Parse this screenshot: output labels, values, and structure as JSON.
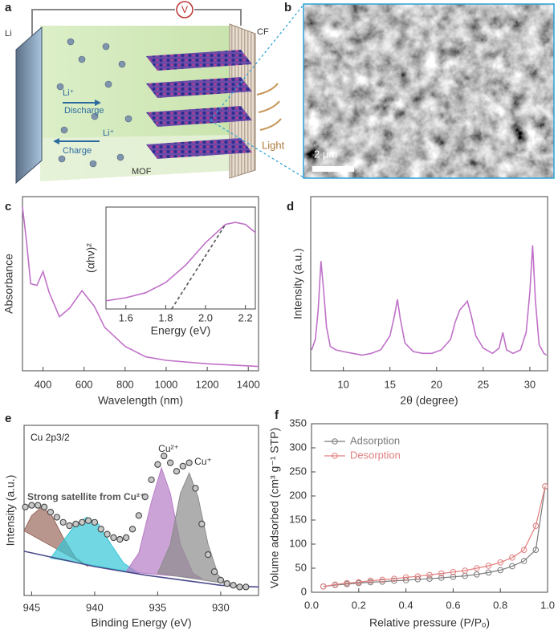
{
  "panel_labels": [
    "a",
    "b",
    "c",
    "d",
    "e",
    "f"
  ],
  "schematic": {
    "voltmeter": "V",
    "anode": "Li",
    "cathode": "CF",
    "ion_discharge": "Li⁺",
    "discharge": "Discharge",
    "ion_charge": "Li⁺",
    "charge": "Charge",
    "mof": "MOF",
    "light": "Light"
  },
  "sem": {
    "scale_bar": "2 μm"
  },
  "chart_data": [
    {
      "type": "line",
      "x_label": "Wavelength (nm)",
      "y_label": "Absorbance",
      "xlim": [
        300,
        1450
      ],
      "xticks": [
        400,
        600,
        800,
        1000,
        1200,
        1400
      ],
      "ylim": [
        0,
        1
      ],
      "series": [
        {
          "color": "#c071c8",
          "x": [
            300,
            320,
            340,
            370,
            400,
            430,
            480,
            530,
            590,
            650,
            700,
            800,
            900,
            1000,
            1200,
            1450
          ],
          "values": [
            0.94,
            0.74,
            0.5,
            0.49,
            0.57,
            0.45,
            0.31,
            0.36,
            0.46,
            0.37,
            0.25,
            0.14,
            0.08,
            0.06,
            0.04,
            0.025
          ]
        }
      ]
    },
    {
      "type": "line",
      "x_label": "Energy (eV)",
      "y_label": "(αhν)²",
      "xlim": [
        1.5,
        2.25
      ],
      "xticks": [
        1.6,
        1.8,
        {
          "value": 2,
          "label": "2.0"
        },
        2.2
      ],
      "ylim": [
        0,
        1
      ],
      "series": [
        {
          "color": "#c071c8",
          "x": [
            1.5,
            1.6,
            1.7,
            1.8,
            1.9,
            2.0,
            2.1,
            2.15,
            2.2,
            2.25
          ],
          "values": [
            0.08,
            0.11,
            0.16,
            0.26,
            0.43,
            0.65,
            0.83,
            0.85,
            0.83,
            0.75
          ]
        },
        {
          "color": "#555555",
          "dash": true,
          "x": [
            1.83,
            2.1
          ],
          "values": [
            0,
            0.83
          ]
        }
      ]
    },
    {
      "type": "line",
      "x_label": "2θ (degree)",
      "y_label": "Intensity (a.u.)",
      "xlim": [
        6.5,
        31.9
      ],
      "xticks": [
        10,
        15,
        20,
        25,
        30
      ],
      "ylim": [
        0,
        1
      ],
      "series": [
        {
          "color": "#c071c8",
          "x": [
            6.6,
            7.0,
            7.3,
            7.6,
            7.9,
            8.2,
            8.6,
            9.2,
            10,
            11,
            12,
            13,
            14,
            15,
            15.5,
            15.8,
            16.1,
            16.6,
            17.5,
            18.5,
            19.5,
            20.5,
            21.5,
            22.0,
            22.5,
            23,
            23.3,
            23.7,
            24.2,
            25,
            26,
            26.7,
            27.1,
            27.5,
            28.2,
            29,
            29.6,
            30.0,
            30.3,
            30.6,
            31,
            31.5,
            31.8
          ],
          "values": [
            0.12,
            0.18,
            0.35,
            0.63,
            0.45,
            0.25,
            0.14,
            0.12,
            0.11,
            0.1,
            0.09,
            0.1,
            0.12,
            0.2,
            0.32,
            0.41,
            0.3,
            0.16,
            0.11,
            0.1,
            0.1,
            0.12,
            0.18,
            0.28,
            0.35,
            0.38,
            0.4,
            0.32,
            0.2,
            0.13,
            0.1,
            0.13,
            0.22,
            0.12,
            0.1,
            0.12,
            0.22,
            0.45,
            0.72,
            0.4,
            0.15,
            0.1,
            0.09
          ]
        }
      ]
    },
    {
      "type": "line",
      "x_label": "Binding Energy (eV)",
      "y_label": "Intensity (a.u.)",
      "xlim": [
        945.6,
        927
      ],
      "xticks": [
        945,
        940,
        935,
        930
      ],
      "ylim": [
        0,
        1
      ],
      "annotations": [
        "Cu 2p3/2",
        "Cu²⁺",
        "Cu⁺",
        "Strong satellite from Cu²⁺"
      ],
      "series": [
        {
          "style": "fill",
          "color": "#9a6a5e",
          "x": [
            945.6,
            945,
            944.2,
            943.4,
            942.5,
            941.5,
            940.5
          ],
          "values": [
            0.38,
            0.47,
            0.52,
            0.47,
            0.34,
            0.22,
            0.17
          ]
        },
        {
          "style": "fill",
          "color": "#35c6d6",
          "x": [
            943.5,
            942.5,
            941.5,
            940.6,
            939.7,
            938.7,
            937.7,
            936.5
          ],
          "values": [
            0.22,
            0.32,
            0.42,
            0.46,
            0.42,
            0.3,
            0.19,
            0.13
          ]
        },
        {
          "style": "fill",
          "color": "#b77cc6",
          "x": [
            937.5,
            936.5,
            935.5,
            934.7,
            934,
            933.2,
            932.2,
            931.5
          ],
          "values": [
            0.14,
            0.25,
            0.55,
            0.75,
            0.6,
            0.3,
            0.13,
            0.1
          ]
        },
        {
          "style": "fill",
          "color": "#8c8c8c",
          "x": [
            935,
            934,
            933.2,
            932.5,
            931.8,
            931,
            930.2,
            929.5
          ],
          "values": [
            0.13,
            0.3,
            0.6,
            0.72,
            0.58,
            0.3,
            0.12,
            0.07
          ]
        },
        {
          "color": "#4a4a8a",
          "x": [
            945.6,
            940,
            936,
            933,
            930,
            927
          ],
          "values": [
            0.26,
            0.17,
            0.12,
            0.09,
            0.06,
            0.05
          ]
        },
        {
          "style": "dots",
          "color": "#444444",
          "x": [
            945.5,
            945,
            944.5,
            944,
            943.5,
            943,
            942.5,
            942,
            941.5,
            941,
            940.5,
            940,
            939.5,
            939,
            938.5,
            938,
            937.5,
            937,
            936.5,
            936,
            935.5,
            935,
            934.5,
            934,
            933.5,
            933,
            932.5,
            932,
            931.5,
            931,
            930.5,
            930,
            929.5,
            929,
            928.5,
            928
          ],
          "values": [
            0.52,
            0.53,
            0.53,
            0.52,
            0.49,
            0.46,
            0.43,
            0.41,
            0.42,
            0.43,
            0.44,
            0.43,
            0.39,
            0.36,
            0.34,
            0.33,
            0.34,
            0.39,
            0.47,
            0.58,
            0.68,
            0.77,
            0.82,
            0.78,
            0.73,
            0.76,
            0.78,
            0.63,
            0.42,
            0.24,
            0.14,
            0.09,
            0.07,
            0.06,
            0.05,
            0.05
          ]
        }
      ]
    },
    {
      "type": "line",
      "x_label": "Relative pressure (P/Pₒ)",
      "y_label": "Volume adsorbed (cm³ g⁻¹ STP)",
      "xlim": [
        0,
        1
      ],
      "xticks": [
        {
          "value": 0,
          "label": "0.0"
        },
        0.2,
        0.4,
        0.6,
        0.8,
        {
          "value": 1,
          "label": "1.0"
        }
      ],
      "ylim": [
        0,
        350
      ],
      "yticks": [
        0,
        50,
        100,
        150,
        200,
        250,
        300,
        350
      ],
      "legend": "upper-left",
      "series": [
        {
          "name": "Adsorption",
          "style": "line-markers",
          "color": "#7a7a7a",
          "x": [
            0.05,
            0.1,
            0.15,
            0.2,
            0.25,
            0.3,
            0.35,
            0.4,
            0.45,
            0.5,
            0.55,
            0.6,
            0.65,
            0.7,
            0.75,
            0.8,
            0.85,
            0.9,
            0.95,
            0.99
          ],
          "values": [
            12,
            15,
            17,
            19,
            21,
            22,
            24,
            25,
            27,
            28,
            30,
            32,
            34,
            37,
            41,
            46,
            54,
            65,
            88,
            220
          ]
        },
        {
          "name": "Desorption",
          "style": "line-markers",
          "color": "#e07e7e",
          "x": [
            0.99,
            0.95,
            0.9,
            0.85,
            0.8,
            0.75,
            0.7,
            0.65,
            0.6,
            0.55,
            0.5,
            0.45,
            0.4,
            0.35,
            0.3,
            0.25,
            0.2,
            0.15,
            0.1,
            0.05
          ],
          "values": [
            220,
            138,
            88,
            72,
            62,
            55,
            50,
            45,
            42,
            39,
            36,
            33,
            31,
            28,
            26,
            24,
            21,
            19,
            16,
            12
          ]
        }
      ]
    }
  ]
}
